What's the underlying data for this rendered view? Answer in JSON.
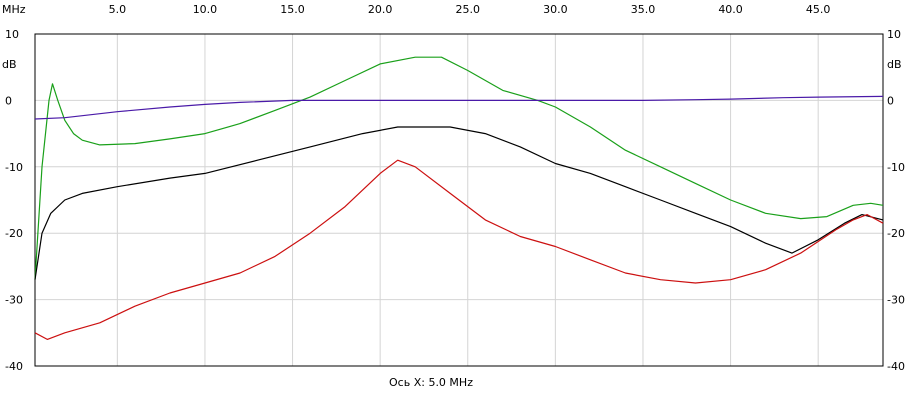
{
  "chart_data": {
    "type": "line",
    "x_unit": "MHz",
    "y_unit": "dB",
    "xlim": [
      0.3,
      48.7
    ],
    "ylim": [
      -40,
      10
    ],
    "x_ticks": [
      {
        "value": 5,
        "label": "5.0"
      },
      {
        "value": 10,
        "label": "10.0"
      },
      {
        "value": 15,
        "label": "15.0"
      },
      {
        "value": 20,
        "label": "20.0"
      },
      {
        "value": 25,
        "label": "25.0"
      },
      {
        "value": 30,
        "label": "30.0"
      },
      {
        "value": 35,
        "label": "35.0"
      },
      {
        "value": 40,
        "label": "40.0"
      },
      {
        "value": 45,
        "label": "45.0"
      }
    ],
    "y_ticks": [
      {
        "value": 10,
        "label": "10"
      },
      {
        "value": 0,
        "label": "0"
      },
      {
        "value": -10,
        "label": "-10"
      },
      {
        "value": -20,
        "label": "-20"
      },
      {
        "value": -30,
        "label": "-30"
      },
      {
        "value": -40,
        "label": "-40"
      }
    ],
    "xlabel": "Ось X: 5.0 MHz",
    "grid": true,
    "series": [
      {
        "color": "#1aa01a",
        "x": [
          0.3,
          0.7,
          1.1,
          1.3,
          1.6,
          2.0,
          2.5,
          3.0,
          4.0,
          6.0,
          8.0,
          10.0,
          12.0,
          14.0,
          16.0,
          18.0,
          20.0,
          22.0,
          23.5,
          25.0,
          27.0,
          29.0,
          30.0,
          32.0,
          34.0,
          36.0,
          38.0,
          40.0,
          42.0,
          44.0,
          45.5,
          47.0,
          48.0,
          48.7
        ],
        "y": [
          -27,
          -10,
          0,
          2.5,
          0,
          -3,
          -5,
          -6,
          -6.7,
          -6.5,
          -5.8,
          -5,
          -3.5,
          -1.5,
          0.5,
          3,
          5.5,
          6.5,
          6.5,
          4.5,
          1.5,
          0,
          -1,
          -4,
          -7.5,
          -10,
          -12.5,
          -15,
          -17,
          -17.8,
          -17.5,
          -15.8,
          -15.5,
          -15.8
        ]
      },
      {
        "color": "#000000",
        "x": [
          0.3,
          0.7,
          1.2,
          2.0,
          3.0,
          5.0,
          8.0,
          10.0,
          13.0,
          16.0,
          19.0,
          21.0,
          22.5,
          24.0,
          26.0,
          28.0,
          30.0,
          32.0,
          34.0,
          36.0,
          38.0,
          40.0,
          42.0,
          43.5,
          45.0,
          46.5,
          47.5,
          48.7
        ],
        "y": [
          -27,
          -20,
          -17,
          -15,
          -14,
          -13,
          -11.7,
          -11,
          -9,
          -7,
          -5,
          -4,
          -4,
          -4,
          -5,
          -7,
          -9.5,
          -11,
          -13,
          -15,
          -17,
          -19,
          -21.5,
          -23,
          -21,
          -18.5,
          -17.2,
          -18
        ]
      },
      {
        "color": "#cc1010",
        "x": [
          0.3,
          1.0,
          2.0,
          4.0,
          6.0,
          8.0,
          10.0,
          12.0,
          14.0,
          16.0,
          18.0,
          20.0,
          21.0,
          22.0,
          24.0,
          26.0,
          28.0,
          30.0,
          32.0,
          34.0,
          36.0,
          38.0,
          40.0,
          42.0,
          44.0,
          46.0,
          47.0,
          47.8,
          48.7
        ],
        "y": [
          -35,
          -36,
          -35,
          -33.5,
          -31,
          -29,
          -27.5,
          -26,
          -23.5,
          -20,
          -16,
          -11,
          -9,
          -10,
          -14,
          -18,
          -20.5,
          -22,
          -24,
          -26,
          -27,
          -27.5,
          -27,
          -25.5,
          -23,
          -19.5,
          -18,
          -17.2,
          -18.5
        ]
      },
      {
        "color": "#4a1aa8",
        "x": [
          0.3,
          2.0,
          5.0,
          8.0,
          10.0,
          12.0,
          15.0,
          20.0,
          25.0,
          30.0,
          35.0,
          38.0,
          40.0,
          43.0,
          45.0,
          48.7
        ],
        "y": [
          -2.8,
          -2.6,
          -1.7,
          -1,
          -0.6,
          -0.3,
          0,
          0,
          0,
          0,
          0,
          0.1,
          0.2,
          0.4,
          0.5,
          0.6
        ]
      }
    ]
  }
}
